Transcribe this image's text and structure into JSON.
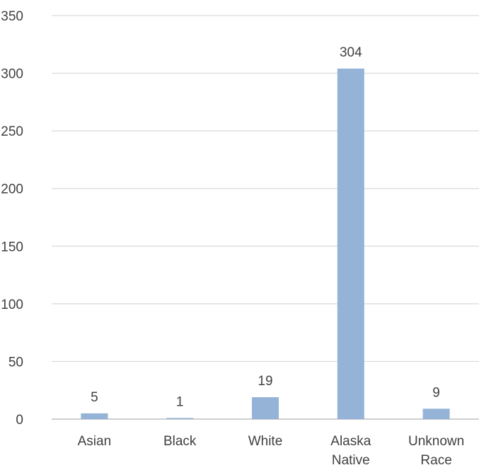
{
  "chart_data": {
    "type": "bar",
    "categories": [
      [
        "Asian"
      ],
      [
        "Black"
      ],
      [
        "White"
      ],
      [
        "Alaska",
        "Native"
      ],
      [
        "Unknown",
        "Race"
      ]
    ],
    "values": [
      5,
      1,
      19,
      304,
      9
    ],
    "data_labels": [
      "5",
      "1",
      "19",
      "304",
      "9"
    ],
    "ylim": [
      0,
      350
    ],
    "y_ticks": [
      {
        "value": 0,
        "label": "0"
      },
      {
        "value": 50,
        "label": "50"
      },
      {
        "value": 100,
        "label": "100"
      },
      {
        "value": 150,
        "label": "150"
      },
      {
        "value": 200,
        "label": "200"
      },
      {
        "value": 250,
        "label": "250"
      },
      {
        "value": 300,
        "label": "300"
      },
      {
        "value": 350,
        "label": "350"
      }
    ],
    "grid": true,
    "legend": "none",
    "colors": {
      "bar": "#95b3d7",
      "grid": "#d9d9d9",
      "axis": "#bfbfbf",
      "text": "#404040"
    }
  }
}
